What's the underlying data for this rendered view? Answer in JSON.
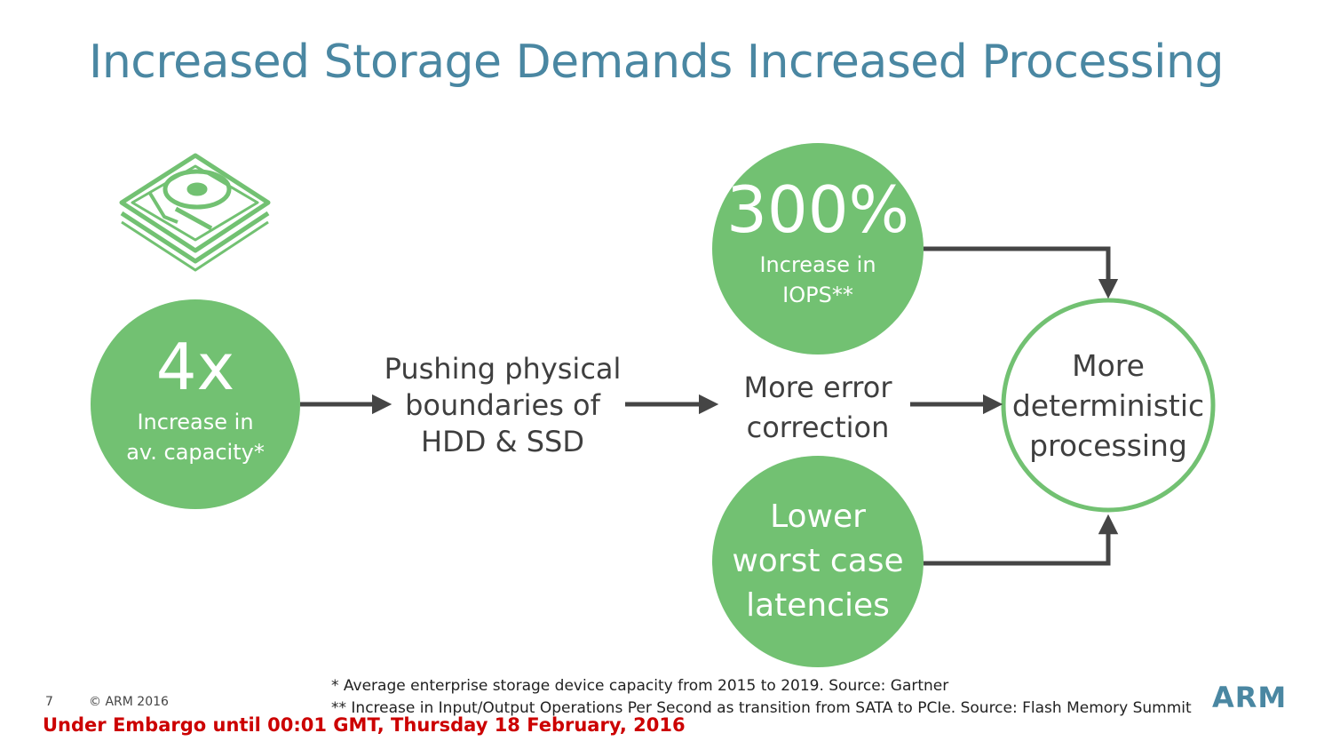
{
  "title": "Increased Storage Demands Increased Processing",
  "capacity": {
    "value": "4x",
    "line1": "Increase in",
    "line2": "av. capacity*"
  },
  "pushing": {
    "line1": "Pushing physical",
    "line2": "boundaries of",
    "line3": "HDD & SSD"
  },
  "iops": {
    "value": "300%",
    "line1": "Increase in",
    "line2": "IOPS**"
  },
  "error_correction": {
    "line1": "More error",
    "line2": "correction"
  },
  "latency": {
    "line1": "Lower",
    "line2": "worst case",
    "line3": "latencies"
  },
  "outcome": {
    "line1": "More",
    "line2": "deterministic",
    "line3": "processing"
  },
  "footnotes": [
    "* Average enterprise storage device capacity from 2015 to 2019. Source: Gartner",
    "** Increase in Input/Output Operations Per Second as transition from SATA to PCIe. Source: Flash Memory Summit"
  ],
  "footer": {
    "page_number": "7",
    "copyright": "© ARM 2016",
    "embargo": "Under Embargo until 00:01 GMT, Thursday 18 February, 2016",
    "logo": "ARM"
  },
  "colors": {
    "green": "#72c172",
    "title_blue": "#4a87a2",
    "arrow": "#454545",
    "embargo_red": "#cc0000"
  },
  "icons": {
    "storage": "hard-drive-icon"
  }
}
